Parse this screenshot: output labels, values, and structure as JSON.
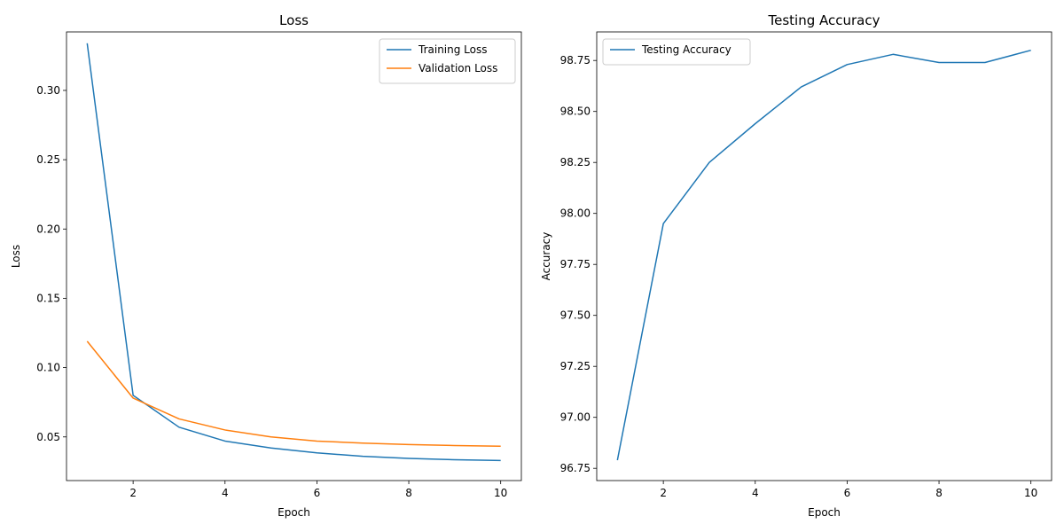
{
  "chart_data": [
    {
      "type": "line",
      "title": "Loss",
      "xlabel": "Epoch",
      "ylabel": "Loss",
      "x": [
        1,
        2,
        3,
        4,
        5,
        6,
        7,
        8,
        9,
        10
      ],
      "xlim": [
        0.55,
        10.45
      ],
      "ylim": [
        0.0185,
        0.3422
      ],
      "xticks": [
        2,
        4,
        6,
        8,
        10
      ],
      "yticks": [
        0.05,
        0.1,
        0.15,
        0.2,
        0.25,
        0.3
      ],
      "xtick_labels": [
        "2",
        "4",
        "6",
        "8",
        "10"
      ],
      "ytick_labels": [
        "0.05",
        "0.10",
        "0.15",
        "0.20",
        "0.25",
        "0.30"
      ],
      "legend_position": "top-right",
      "series": [
        {
          "name": "Training Loss",
          "color": "#1f77b4",
          "values": [
            0.334,
            0.08,
            0.057,
            0.047,
            0.042,
            0.0385,
            0.036,
            0.0345,
            0.0335,
            0.033
          ]
        },
        {
          "name": "Validation Loss",
          "color": "#ff7f0e",
          "values": [
            0.119,
            0.078,
            0.063,
            0.055,
            0.05,
            0.047,
            0.0455,
            0.0445,
            0.0438,
            0.0433
          ]
        }
      ]
    },
    {
      "type": "line",
      "title": "Testing Accuracy",
      "xlabel": "Epoch",
      "ylabel": "Accuracy",
      "x": [
        1,
        2,
        3,
        4,
        5,
        6,
        7,
        8,
        9,
        10
      ],
      "xlim": [
        0.55,
        10.45
      ],
      "ylim": [
        96.69,
        98.89
      ],
      "xticks": [
        2,
        4,
        6,
        8,
        10
      ],
      "yticks": [
        96.75,
        97.0,
        97.25,
        97.5,
        97.75,
        98.0,
        98.25,
        98.5,
        98.75
      ],
      "xtick_labels": [
        "2",
        "4",
        "6",
        "8",
        "10"
      ],
      "ytick_labels": [
        "96.75",
        "97.00",
        "97.25",
        "97.50",
        "97.75",
        "98.00",
        "98.25",
        "98.50",
        "98.75"
      ],
      "legend_position": "top-left",
      "series": [
        {
          "name": "Testing Accuracy",
          "color": "#1f77b4",
          "values": [
            96.79,
            97.95,
            98.25,
            98.44,
            98.62,
            98.73,
            98.78,
            98.74,
            98.74,
            98.8
          ]
        }
      ]
    }
  ]
}
